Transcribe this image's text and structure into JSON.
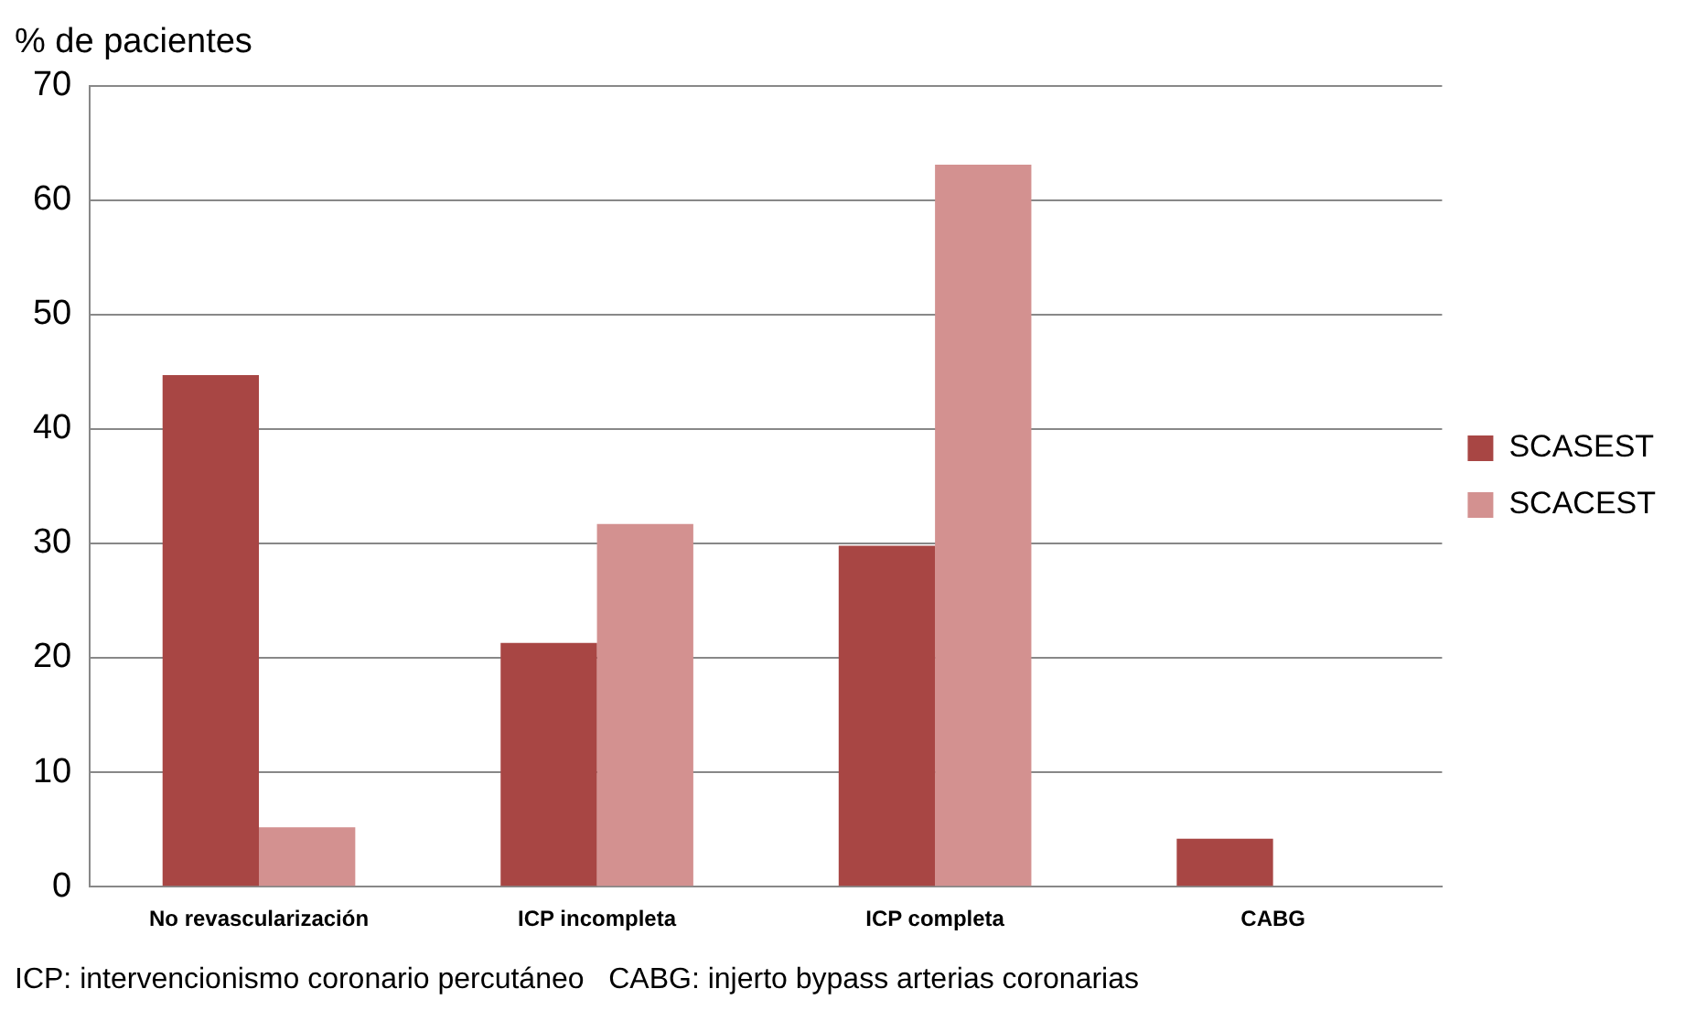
{
  "chart_data": {
    "type": "bar",
    "ylabel": "% de pacientes",
    "categories": [
      "No revascularización",
      "ICP incompleta",
      "ICP completa",
      "CABG"
    ],
    "series": [
      {
        "name": "SCASEST",
        "color": "#a84644",
        "values": [
          44.7,
          21.3,
          29.8,
          4.2
        ]
      },
      {
        "name": "SCACEST",
        "color": "#d39190",
        "values": [
          5.2,
          31.7,
          63.1,
          0
        ]
      }
    ],
    "ylim": [
      0,
      70
    ],
    "yticks": [
      0,
      10,
      20,
      30,
      40,
      50,
      60,
      70
    ],
    "grid": "y",
    "legend": "right",
    "annotations": [
      "ICP: intervencionismo coronario percutáneo   CABG: injerto bypass arterias coronarias"
    ]
  }
}
